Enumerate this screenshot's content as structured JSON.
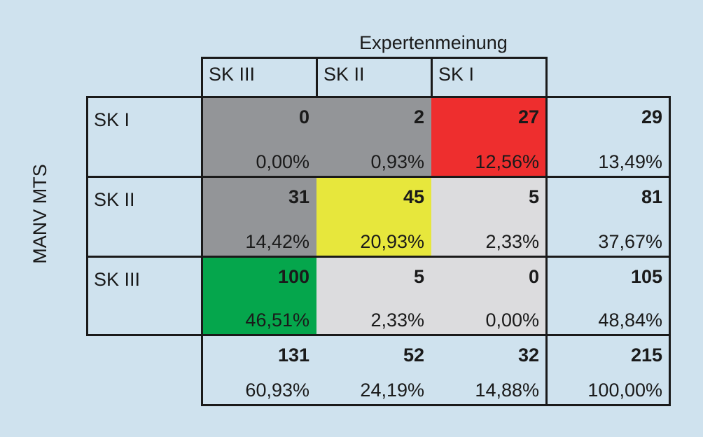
{
  "chart_data": {
    "type": "table",
    "title": "",
    "column_axis_label": "Expertenmeinung",
    "row_axis_label": "MANV MTS",
    "columns": [
      "SK III",
      "SK II",
      "SK I"
    ],
    "rows": [
      {
        "label": "SK I",
        "cells": [
          {
            "count": "0",
            "percent": "0,00%",
            "color": "#939598"
          },
          {
            "count": "2",
            "percent": "0,93%",
            "color": "#939598"
          },
          {
            "count": "27",
            "percent": "12,56%",
            "color": "#ee2e2e"
          }
        ],
        "total": {
          "count": "29",
          "percent": "13,49%"
        }
      },
      {
        "label": "SK II",
        "cells": [
          {
            "count": "31",
            "percent": "14,42%",
            "color": "#939598"
          },
          {
            "count": "45",
            "percent": "20,93%",
            "color": "#e7e73c"
          },
          {
            "count": "5",
            "percent": "2,33%",
            "color": "#dcdcde"
          }
        ],
        "total": {
          "count": "81",
          "percent": "37,67%"
        }
      },
      {
        "label": "SK III",
        "cells": [
          {
            "count": "100",
            "percent": "46,51%",
            "color": "#05a64c"
          },
          {
            "count": "5",
            "percent": "2,33%",
            "color": "#dcdcde"
          },
          {
            "count": "0",
            "percent": "0,00%",
            "color": "#dcdcde"
          }
        ],
        "total": {
          "count": "105",
          "percent": "48,84%"
        }
      }
    ],
    "column_totals": [
      {
        "count": "131",
        "percent": "60,93%"
      },
      {
        "count": "52",
        "percent": "24,19%"
      },
      {
        "count": "32",
        "percent": "14,88%"
      }
    ],
    "grand_total": {
      "count": "215",
      "percent": "100,00%"
    }
  }
}
